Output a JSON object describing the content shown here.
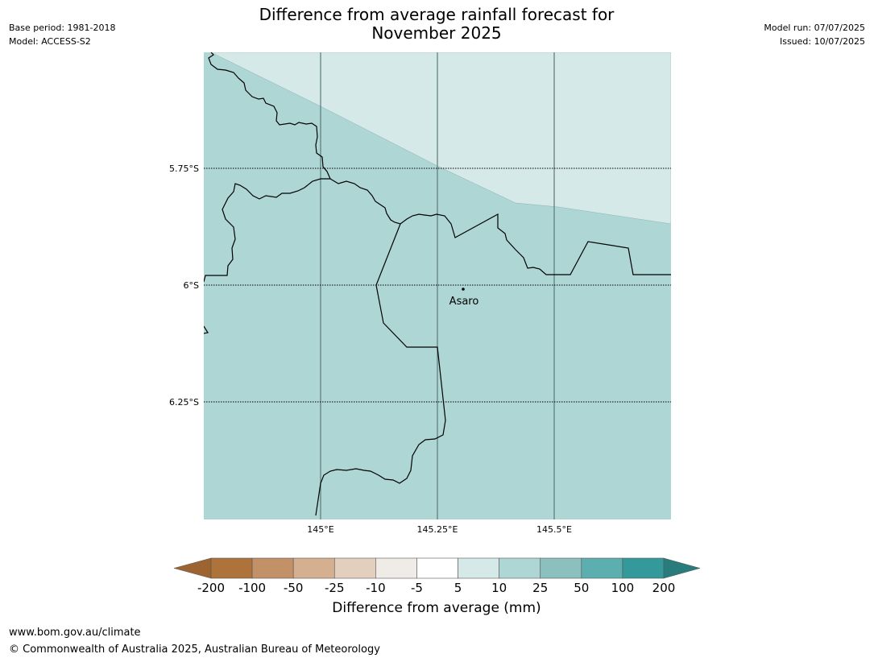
{
  "header": {
    "title_line1": "Difference from average rainfall forecast for",
    "title_line2": "November 2025",
    "base_period": "Base period: 1981-2018",
    "model": "Model: ACCESS-S2",
    "model_run": "Model run: 07/07/2025",
    "issued": "Issued: 10/07/2025"
  },
  "map": {
    "lat_labels": [
      "5.75°S",
      "6°S",
      "6.25°S"
    ],
    "lon_labels": [
      "145°E",
      "145.25°E",
      "145.5°E"
    ],
    "place": {
      "name": "Asaro"
    },
    "colors": {
      "band_5_10": "#d4e9e8",
      "band_10_25": "#aed6d5",
      "border": "#000000",
      "meridian": "#5c7a78"
    }
  },
  "colorbar": {
    "title": "Difference from average (mm)",
    "tick_labels": [
      "-200",
      "-100",
      "-50",
      "-25",
      "-10",
      "-5",
      "5",
      "10",
      "25",
      "50",
      "100",
      "200"
    ],
    "colors": {
      "below_min": "#9c6430",
      "bins": [
        "#ad733a",
        "#c39167",
        "#d4b090",
        "#e3cfbd",
        "#efebe7",
        "#ffffff",
        "#d4e9e8",
        "#aed6d5",
        "#8bc0bf",
        "#5daeae",
        "#33999a"
      ],
      "above_max": "#2a7b7b"
    }
  },
  "footer": {
    "url": "www.bom.gov.au/climate",
    "copyright": "© Commonwealth of Australia 2025, Australian Bureau of Meteorology"
  }
}
